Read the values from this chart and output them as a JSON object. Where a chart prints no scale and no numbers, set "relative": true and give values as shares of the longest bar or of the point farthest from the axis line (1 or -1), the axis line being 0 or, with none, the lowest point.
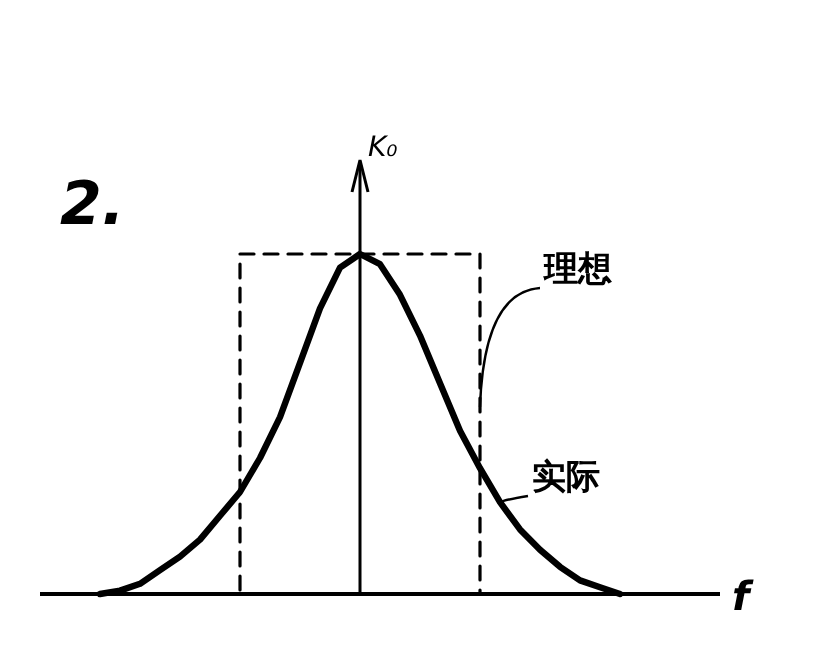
{
  "chart_data": {
    "type": "line",
    "relative": true,
    "xlabel": "f",
    "ylabel": "K₀",
    "annotations": [
      "2."
    ],
    "categories": [
      null,
      null,
      null,
      null,
      null,
      null,
      null,
      null,
      null,
      null,
      null,
      null,
      null,
      null,
      null,
      null,
      null,
      null,
      null,
      null,
      null,
      null,
      null,
      null,
      null,
      null,
      null,
      null,
      null,
      null,
      null,
      null,
      null
    ],
    "series": [
      {
        "name": "理想",
        "type": "step",
        "line_style": "dashed",
        "color": "#000000",
        "values": [
          null,
          null,
          null,
          null,
          null,
          null,
          null,
          null,
          null,
          0,
          1,
          1,
          1,
          1,
          1,
          1,
          1,
          1,
          1,
          1,
          1,
          1,
          0,
          null,
          null,
          null,
          null,
          null,
          null,
          null,
          null,
          null,
          null
        ]
      },
      {
        "name": "实际",
        "type": "line",
        "line_style": "solid",
        "color": "#000000",
        "values": [
          null,
          null,
          null,
          0,
          0.01,
          0.03,
          0.07,
          0.11,
          0.16,
          0.23,
          0.3,
          0.4,
          0.52,
          0.68,
          0.84,
          0.96,
          1,
          0.97,
          0.88,
          0.76,
          0.62,
          0.48,
          0.37,
          0.27,
          0.19,
          0.13,
          0.08,
          0.04,
          0.02,
          0,
          null,
          null,
          null
        ]
      }
    ]
  }
}
